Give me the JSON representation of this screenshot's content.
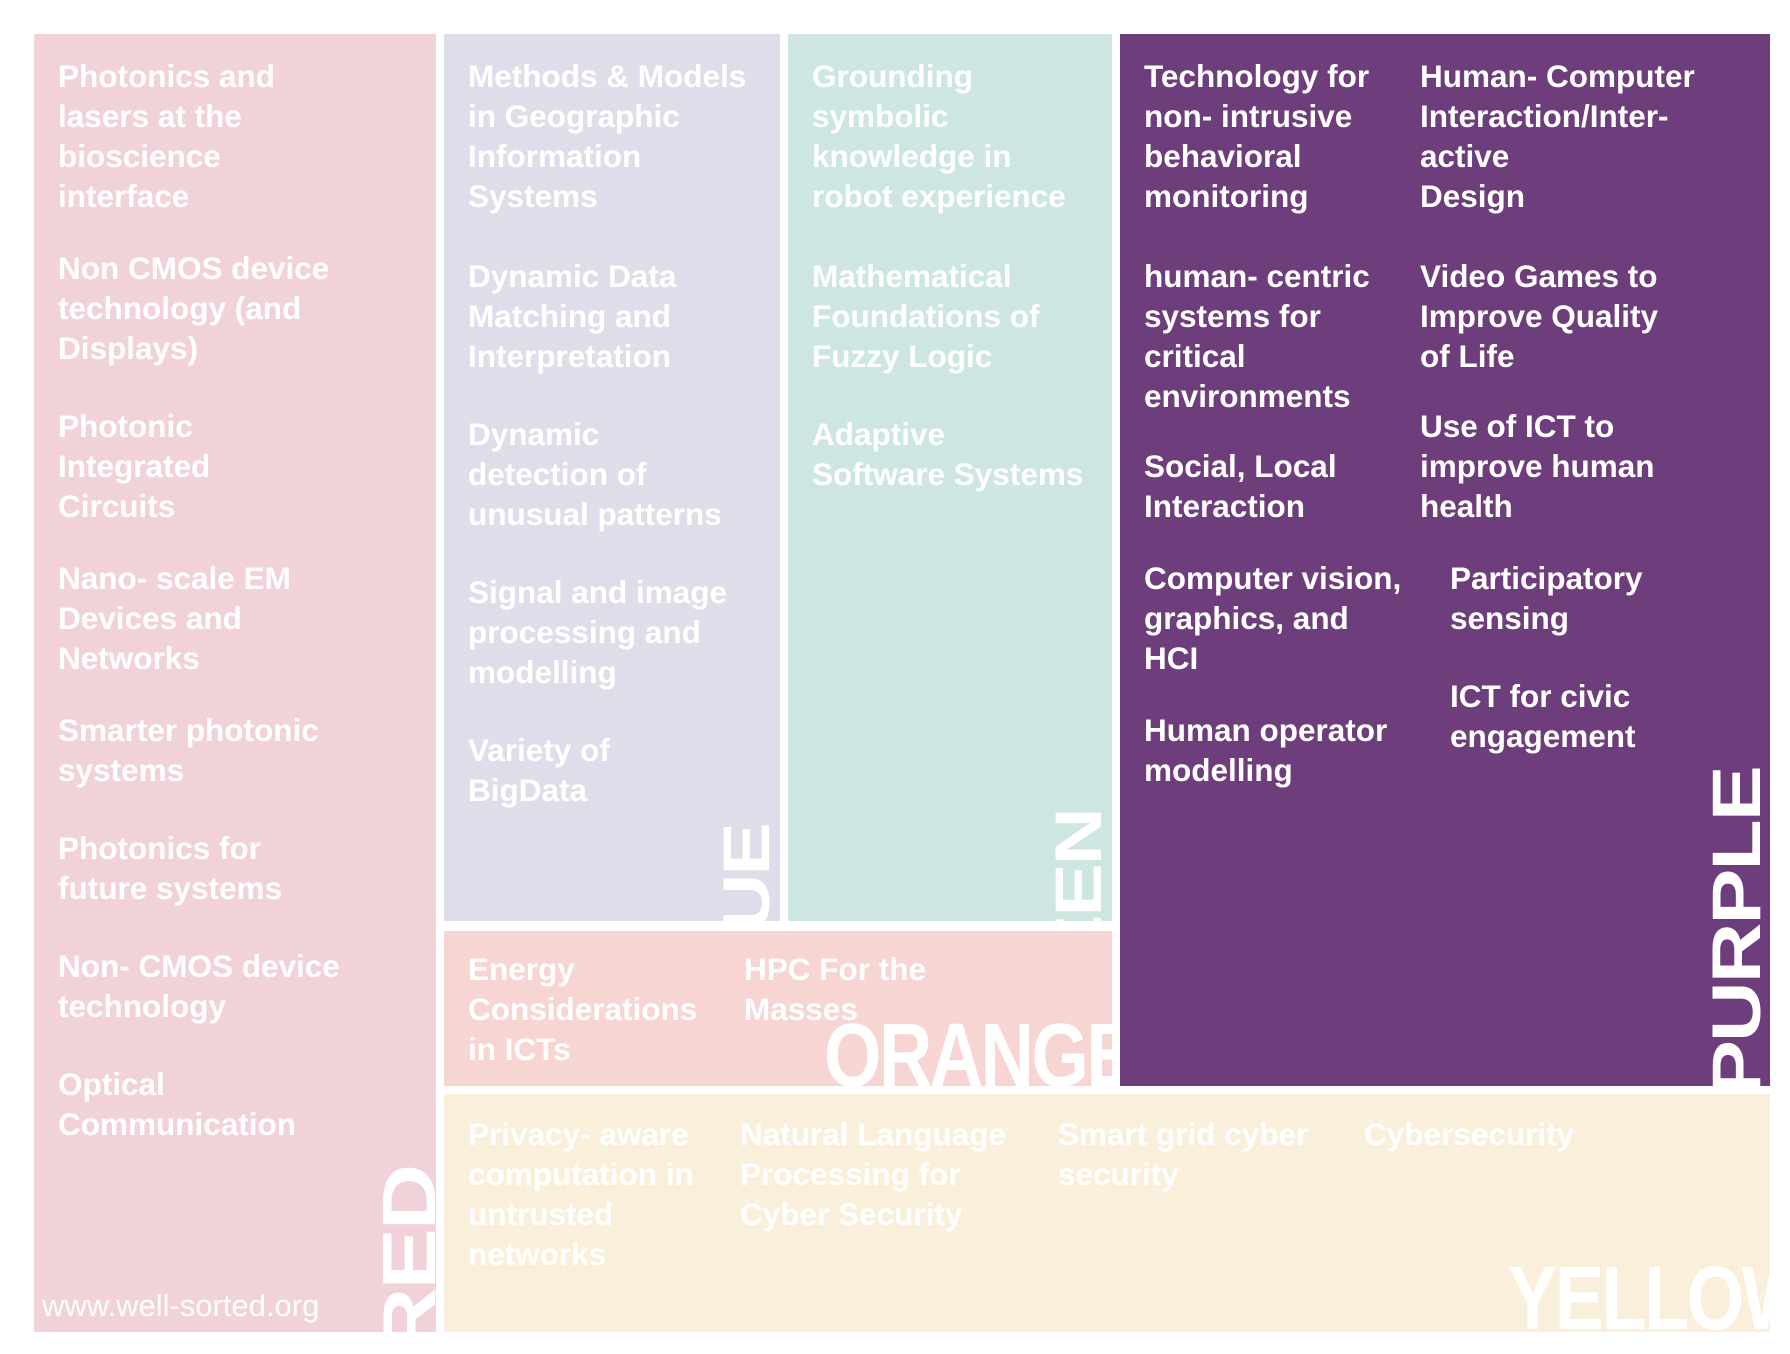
{
  "colors": {
    "red": "#f1d2d8",
    "blue": "#dedeea",
    "green": "#cde6e1",
    "purple": "#6e3d7c",
    "orange": "#f6d5d3",
    "yellow": "#faefdb"
  },
  "website": "www.well-sorted.org",
  "groups": {
    "red": {
      "label": "RED",
      "items": [
        "Photonics and\nlasers at the\nbioscience\ninterface",
        "Non CMOS device\ntechnology (and\nDisplays)",
        "Photonic\nIntegrated\nCircuits",
        "Nano- scale EM\nDevices and\nNetworks",
        "Smarter photonic\nsystems",
        "Photonics for\nfuture systems",
        "Non- CMOS device\ntechnology",
        "Optical\nCommunication"
      ]
    },
    "blue": {
      "label": "BLUE",
      "items": [
        "Methods & Models\nin Geographic\nInformation\nSystems",
        "Dynamic Data\nMatching and\nInterpretation",
        "Dynamic\ndetection of\nunusual patterns",
        "Signal and image\nprocessing and\nmodelling",
        "Variety of\nBigData"
      ]
    },
    "green": {
      "label": "GREEN",
      "items": [
        "Grounding\nsymbolic\nknowledge in\nrobot experience",
        "Mathematical\nFoundations of\nFuzzy Logic",
        "Adaptive\nSoftware Systems"
      ]
    },
    "purple": {
      "label": "PURPLE",
      "items": [
        "Technology for\nnon- intrusive\nbehavioral\nmonitoring",
        "Human- Computer\nInteraction/Inter-\nactive\nDesign",
        "human- centric\nsystems for\ncritical\nenvironments",
        "Video Games to\nImprove Quality\nof Life",
        "Use of ICT to\nimprove human\nhealth",
        "Social, Local\nInteraction",
        "Computer vision,\ngraphics, and\nHCI",
        "Participatory\nsensing",
        "Human operator\nmodelling",
        "ICT for civic\nengagement"
      ]
    },
    "orange": {
      "label": "ORANGE",
      "items": [
        "Energy\nConsiderations\nin ICTs",
        "HPC For the\nMasses"
      ]
    },
    "yellow": {
      "label": "YELLOW",
      "items": [
        "Privacy- aware\ncomputation in\nuntrusted\nnetworks",
        "Natural Language\nProcessing for\nCyber Security",
        "Smart grid cyber\nsecurity",
        "Cybersecurity"
      ]
    }
  }
}
